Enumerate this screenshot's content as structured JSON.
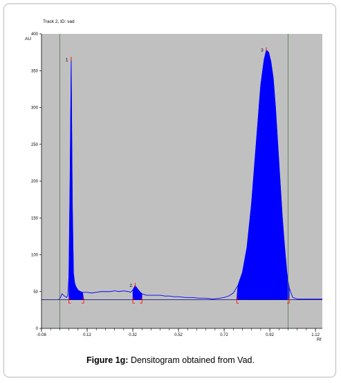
{
  "caption": {
    "label": "Figure 1g:",
    "text": "Densitogram obtained from Vad."
  },
  "chart_data": {
    "type": "area",
    "title": "Track 2, ID: vad",
    "ylabel": "AU",
    "xlabel": "Rf",
    "xlim": [
      -0.08,
      1.15
    ],
    "ylim": [
      0,
      400
    ],
    "x_ticks": [
      "-0.08",
      "0.12",
      "0.32",
      "0.52",
      "0.72",
      "0.92",
      "1.12"
    ],
    "y_ticks": [
      "0",
      "50",
      "100",
      "150",
      "200",
      "250",
      "300",
      "350",
      "400"
    ],
    "y_ticks_values": [
      0,
      50,
      100,
      150,
      200,
      250,
      300,
      350,
      400
    ],
    "x_ticks_values": [
      -0.08,
      0.12,
      0.32,
      0.52,
      0.72,
      0.92,
      1.12
    ],
    "baseline": 39,
    "vertical_markers": [
      0.0,
      1.0
    ],
    "background_color": "#c0c0c0",
    "fill_color": "#0000ff",
    "line_color": "#0000ff",
    "peak_marker_color": "#ff0000",
    "series": [
      {
        "x": [
          -0.005,
          0.0,
          0.01,
          0.02,
          0.03,
          0.035,
          0.04,
          0.045,
          0.05,
          0.055,
          0.06,
          0.065,
          0.07,
          0.08,
          0.09,
          0.1,
          0.11,
          0.12,
          0.14,
          0.16,
          0.18,
          0.2,
          0.22,
          0.24,
          0.26,
          0.28,
          0.3,
          0.31,
          0.32,
          0.33,
          0.34,
          0.35,
          0.36,
          0.37,
          0.38,
          0.4,
          0.42,
          0.44,
          0.46,
          0.48,
          0.5,
          0.52,
          0.55,
          0.58,
          0.61,
          0.64,
          0.67,
          0.7,
          0.72,
          0.74,
          0.76,
          0.78,
          0.8,
          0.82,
          0.84,
          0.86,
          0.88,
          0.895,
          0.905,
          0.915,
          0.925,
          0.935,
          0.945,
          0.955,
          0.965,
          0.975,
          0.985,
          0.995,
          1.005,
          1.02,
          1.04,
          1.08,
          1.12,
          1.15
        ],
        "y": [
          40,
          40,
          47,
          44,
          42,
          45,
          70,
          200,
          365,
          170,
          75,
          62,
          57,
          52,
          50,
          49,
          49,
          49,
          48,
          49,
          50,
          50,
          50,
          51,
          50,
          51,
          50,
          49,
          52,
          58,
          54,
          50,
          47,
          46,
          45,
          45,
          45,
          45,
          44,
          44,
          43,
          43,
          42,
          42,
          41,
          41,
          40,
          41,
          42,
          44,
          48,
          58,
          76,
          110,
          170,
          250,
          330,
          365,
          378,
          375,
          362,
          340,
          300,
          250,
          200,
          150,
          110,
          75,
          55,
          42,
          40,
          40,
          40,
          40
        ]
      }
    ],
    "peaks": [
      {
        "label": "1",
        "rf": 0.05,
        "height": 365
      },
      {
        "label": "2",
        "rf": 0.33,
        "height": 58
      },
      {
        "label": "3",
        "rf": 0.905,
        "height": 378
      }
    ],
    "integration_regions": [
      [
        0.04,
        0.105
      ],
      [
        0.32,
        0.36
      ],
      [
        0.775,
        1.005
      ]
    ]
  }
}
